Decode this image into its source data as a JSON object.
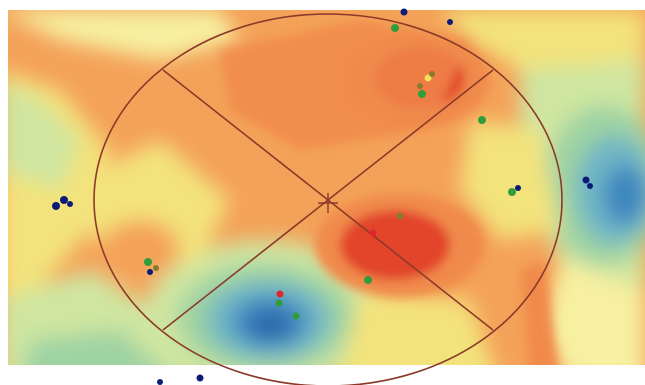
{
  "map": {
    "colors": {
      "hot": "#e2452c",
      "warm": "#f08a4b",
      "orange": "#f4a259",
      "yellow": "#f3e37c",
      "pale_yellow": "#f7f0a0",
      "light_green": "#cfe6a0",
      "green": "#9fd3a3",
      "teal": "#6fb6c4",
      "blue": "#3e86c0",
      "deep_blue": "#2a66aa",
      "ellipse_stroke": "#8b3a2a",
      "point_green": "#2f9e3a",
      "point_red": "#e0262a",
      "point_navy": "#0c1a78",
      "point_olive": "#8a7a2f",
      "point_yellow": "#f2e15a"
    },
    "overlay": {
      "shape": "standard-deviation-ellipse",
      "center_marker": "crosshair-icon",
      "axis_lines": 2
    },
    "point_groups": [
      {
        "name": "green-points",
        "color": "point_green",
        "count": 10
      },
      {
        "name": "red-points",
        "color": "point_red",
        "count": 2
      },
      {
        "name": "navy-points",
        "color": "point_navy",
        "count": 11
      },
      {
        "name": "olive-points",
        "color": "point_olive",
        "count": 3
      }
    ]
  }
}
